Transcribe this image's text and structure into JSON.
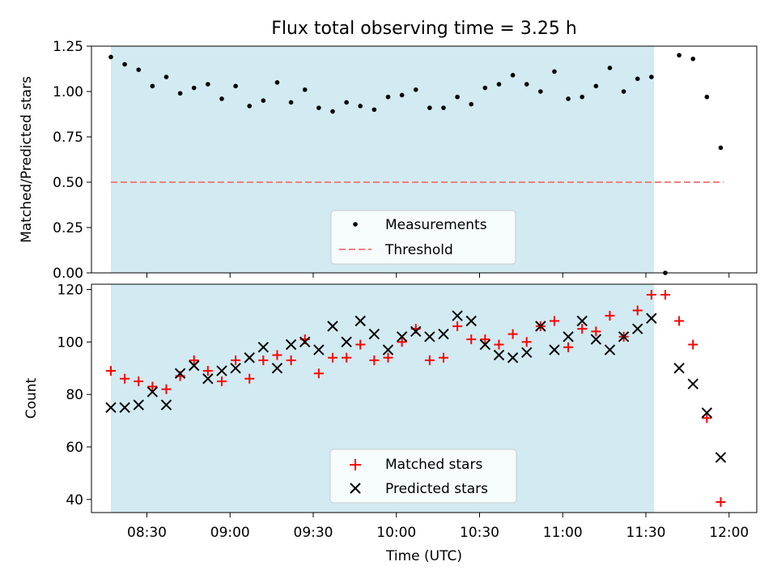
{
  "title": "Flux total observing time = 3.25 h",
  "colors": {
    "shade": "#add8e6",
    "measurements": "#000000",
    "threshold": "#f08080",
    "matched": "#ff0000",
    "predicted": "#000000"
  },
  "chart_data": [
    {
      "type": "scatter",
      "ylabel": "Matched/Predicted stars",
      "ylim": [
        0,
        1.25
      ],
      "yticks": [
        0,
        0.25,
        0.5,
        0.75,
        1.0,
        1.25
      ],
      "ytick_labels": [
        "0.00",
        "0.25",
        "0.50",
        "0.75",
        "1.00",
        "1.25"
      ],
      "xlim": [
        "08:10",
        "12:10"
      ],
      "xticks": [
        "08:30",
        "09:00",
        "09:30",
        "10:00",
        "10:30",
        "11:00",
        "11:30",
        "12:00"
      ],
      "shaded_span": [
        "08:17",
        "11:33"
      ],
      "legend_position": "lower center",
      "threshold": {
        "name": "Threshold",
        "value": 0.5,
        "x": [
          "08:17",
          "11:58"
        ]
      },
      "series": [
        {
          "name": "Measurements",
          "x": [
            "08:17",
            "08:22",
            "08:27",
            "08:32",
            "08:37",
            "08:42",
            "08:47",
            "08:52",
            "08:57",
            "09:02",
            "09:07",
            "09:12",
            "09:17",
            "09:22",
            "09:27",
            "09:32",
            "09:37",
            "09:42",
            "09:47",
            "09:52",
            "09:57",
            "10:02",
            "10:07",
            "10:12",
            "10:17",
            "10:22",
            "10:27",
            "10:32",
            "10:37",
            "10:42",
            "10:47",
            "10:52",
            "10:57",
            "11:02",
            "11:07",
            "11:12",
            "11:17",
            "11:22",
            "11:27",
            "11:32",
            "11:37",
            "11:42",
            "11:47",
            "11:52",
            "11:57"
          ],
          "values": [
            1.19,
            1.15,
            1.12,
            1.03,
            1.08,
            0.99,
            1.02,
            1.04,
            0.96,
            1.03,
            0.92,
            0.95,
            1.05,
            0.94,
            1.01,
            0.91,
            0.89,
            0.94,
            0.92,
            0.9,
            0.97,
            0.98,
            1.01,
            0.91,
            0.91,
            0.97,
            0.93,
            1.02,
            1.04,
            1.09,
            1.04,
            1.0,
            1.11,
            0.96,
            0.97,
            1.03,
            1.13,
            1.0,
            1.07,
            1.08,
            0.0,
            1.2,
            1.18,
            0.97,
            0.69
          ]
        }
      ]
    },
    {
      "type": "scatter",
      "xlabel": "Time (UTC)",
      "ylabel": "Count",
      "ylim": [
        35,
        122
      ],
      "yticks": [
        40,
        60,
        80,
        100,
        120
      ],
      "xlim": [
        "08:10",
        "12:10"
      ],
      "xticks": [
        "08:30",
        "09:00",
        "09:30",
        "10:00",
        "10:30",
        "11:00",
        "11:30",
        "12:00"
      ],
      "shaded_span": [
        "08:17",
        "11:33"
      ],
      "legend_position": "lower center",
      "series": [
        {
          "name": "Matched stars",
          "marker": "plus",
          "x": [
            "08:17",
            "08:22",
            "08:27",
            "08:32",
            "08:37",
            "08:42",
            "08:47",
            "08:52",
            "08:57",
            "09:02",
            "09:07",
            "09:12",
            "09:17",
            "09:22",
            "09:27",
            "09:32",
            "09:37",
            "09:42",
            "09:47",
            "09:52",
            "09:57",
            "10:02",
            "10:07",
            "10:12",
            "10:17",
            "10:22",
            "10:27",
            "10:32",
            "10:37",
            "10:42",
            "10:47",
            "10:52",
            "10:57",
            "11:02",
            "11:07",
            "11:12",
            "11:17",
            "11:22",
            "11:27",
            "11:32",
            "11:37",
            "11:42",
            "11:47",
            "11:52",
            "11:57"
          ],
          "values": [
            89,
            86,
            85,
            83,
            82,
            87,
            93,
            89,
            85,
            93,
            86,
            93,
            95,
            93,
            101,
            88,
            94,
            94,
            99,
            93,
            94,
            100,
            105,
            93,
            94,
            106,
            101,
            101,
            99,
            103,
            100,
            106,
            108,
            98,
            105,
            104,
            110,
            102,
            112,
            118,
            118,
            108,
            99,
            71,
            39
          ]
        },
        {
          "name": "Predicted stars",
          "marker": "x",
          "x": [
            "08:17",
            "08:22",
            "08:27",
            "08:32",
            "08:37",
            "08:42",
            "08:47",
            "08:52",
            "08:57",
            "09:02",
            "09:07",
            "09:12",
            "09:17",
            "09:22",
            "09:27",
            "09:32",
            "09:37",
            "09:42",
            "09:47",
            "09:52",
            "09:57",
            "10:02",
            "10:07",
            "10:12",
            "10:17",
            "10:22",
            "10:27",
            "10:32",
            "10:37",
            "10:42",
            "10:47",
            "10:52",
            "10:57",
            "11:02",
            "11:07",
            "11:12",
            "11:17",
            "11:22",
            "11:27",
            "11:32",
            "11:42",
            "11:47",
            "11:52",
            "11:57"
          ],
          "values": [
            75,
            75,
            76,
            81,
            76,
            88,
            91,
            86,
            89,
            90,
            94,
            98,
            90,
            99,
            100,
            97,
            106,
            100,
            108,
            103,
            97,
            102,
            104,
            102,
            103,
            110,
            108,
            99,
            95,
            94,
            96,
            106,
            97,
            102,
            108,
            101,
            97,
            102,
            105,
            109,
            90,
            84,
            73,
            56
          ]
        }
      ]
    }
  ]
}
